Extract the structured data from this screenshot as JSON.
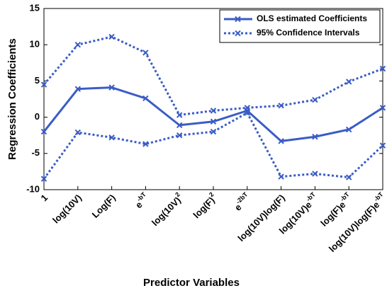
{
  "chart_data": {
    "type": "line",
    "xlabel": "Predictor Variables",
    "ylabel": "Regression Coefficients",
    "categories": [
      {
        "base": "1"
      },
      {
        "base": "log(10V)"
      },
      {
        "base": "Log(F)"
      },
      {
        "base": "e",
        "sup": "-bT"
      },
      {
        "base": "log(10V)",
        "sup": "2"
      },
      {
        "base": "log(F)",
        "sup": "2"
      },
      {
        "base": "e",
        "sup": "-2bT"
      },
      {
        "base": "log(10V)log(F)"
      },
      {
        "base": "log(10V)e",
        "sup": "-bT"
      },
      {
        "base": "log(F)e",
        "sup": "-bT"
      },
      {
        "base": "log(10V)log(F)e",
        "sup": "-bT"
      }
    ],
    "series": [
      {
        "name": "OLS estimated Coefficients",
        "color": "#3a5cc6",
        "style": "solid",
        "values": [
          -2,
          3.9,
          4.1,
          2.6,
          -1.1,
          -0.6,
          0.9,
          -3.3,
          -2.7,
          -1.7,
          1.3
        ]
      },
      {
        "name": "95% Confidence Intervals",
        "color": "#3a5cc6",
        "style": "dotted",
        "upper": [
          4.5,
          10,
          11.1,
          8.9,
          0.3,
          0.9,
          1.3,
          1.6,
          2.4,
          4.9,
          6.7
        ],
        "lower": [
          -8.5,
          -2.1,
          -2.8,
          -3.7,
          -2.5,
          -2,
          0.6,
          -8.2,
          -7.8,
          -8.3,
          -3.9
        ]
      }
    ],
    "ylim": [
      -10,
      15
    ],
    "yticks": [
      -10,
      -5,
      0,
      5,
      10,
      15
    ],
    "legend": "upper right"
  }
}
